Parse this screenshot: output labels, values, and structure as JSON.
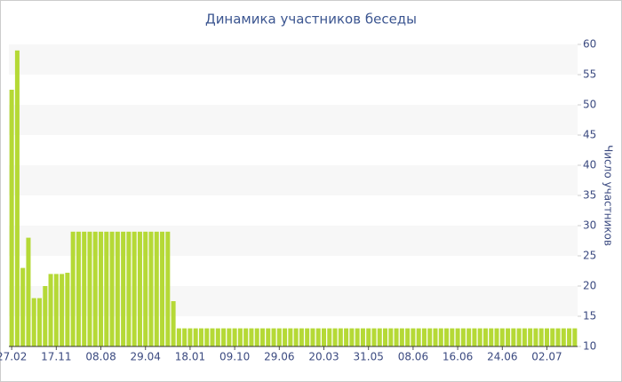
{
  "chart_data": {
    "type": "bar",
    "title": "Динамика участников беседы",
    "y_label": "Число участников",
    "categories": [
      "27.02",
      null,
      null,
      null,
      null,
      null,
      null,
      null,
      "17.11",
      null,
      null,
      null,
      null,
      null,
      null,
      null,
      "08.08",
      null,
      null,
      null,
      null,
      null,
      null,
      null,
      "29.04",
      null,
      null,
      null,
      null,
      null,
      null,
      null,
      "18.01",
      null,
      null,
      null,
      null,
      null,
      null,
      null,
      "09.10",
      null,
      null,
      null,
      null,
      null,
      null,
      null,
      "29.06",
      null,
      null,
      null,
      null,
      null,
      null,
      null,
      "20.03",
      null,
      null,
      null,
      null,
      null,
      null,
      null,
      "31.05",
      null,
      null,
      null,
      null,
      null,
      null,
      null,
      "08.06",
      null,
      null,
      null,
      null,
      null,
      null,
      null,
      "16.06",
      null,
      null,
      null,
      null,
      null,
      null,
      null,
      "24.06",
      null,
      null,
      null,
      null,
      null,
      null,
      null,
      "02.07",
      null,
      null,
      null,
      null,
      null
    ],
    "values": [
      52.5,
      59,
      23,
      28,
      18,
      18,
      20,
      22,
      22,
      22,
      22.2,
      29,
      29,
      29,
      29,
      29,
      29,
      29,
      29,
      29,
      29,
      29,
      29,
      29,
      29,
      29,
      29,
      29,
      29,
      17.5,
      13,
      13,
      13,
      13,
      13,
      13,
      13,
      13,
      13,
      13,
      13,
      13,
      13,
      13,
      13,
      13,
      13,
      13,
      13,
      13,
      13,
      13,
      13,
      13,
      13,
      13,
      13,
      13,
      13,
      13,
      13,
      13,
      13,
      13,
      13,
      13,
      13,
      13,
      13,
      13,
      13,
      13,
      13,
      13,
      13,
      13,
      13,
      13,
      13,
      13,
      13,
      13,
      13,
      13,
      13,
      13,
      13,
      13,
      13,
      13,
      13,
      13,
      13,
      13,
      13,
      13,
      13,
      13,
      13,
      13,
      13,
      13
    ],
    "color": "#b5d936",
    "ylim": [
      10,
      60
    ],
    "yticks": [
      10,
      15,
      20,
      25,
      30,
      35,
      40,
      45,
      50,
      55,
      60
    ],
    "grid": true
  }
}
